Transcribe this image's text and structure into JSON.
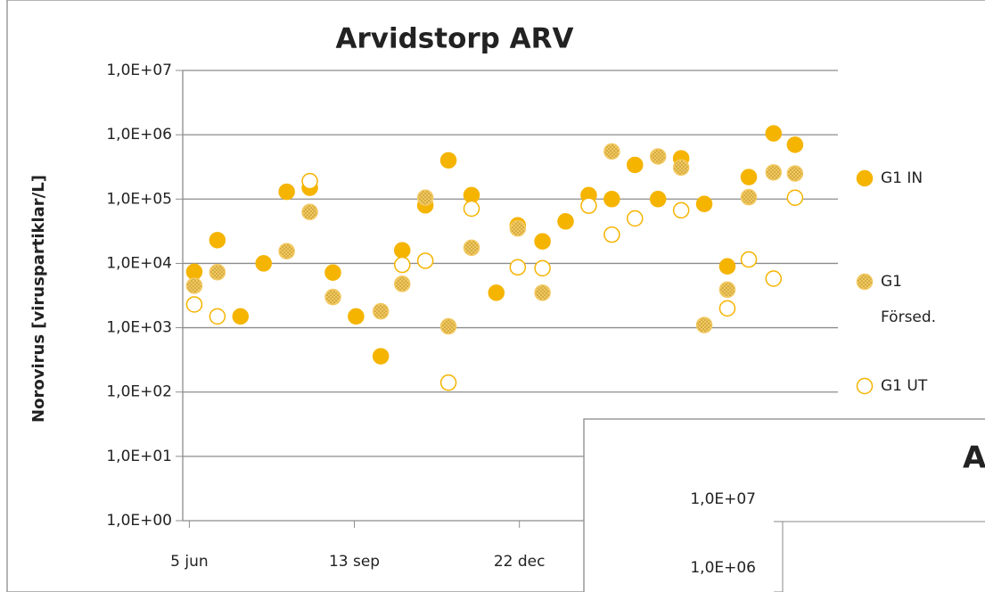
{
  "chart_data": {
    "type": "scatter",
    "title": "Arvidstorp ARV",
    "y_label": "Norovirus [viruspartiklar/L]",
    "log_y": true,
    "grid": true,
    "xlim": [
      -4,
      393
    ],
    "xticks": [
      {
        "value": 0,
        "label": "5 jun"
      },
      {
        "value": 100,
        "label": "13 sep"
      },
      {
        "value": 200,
        "label": "22 dec"
      }
    ],
    "ylim": [
      1,
      10000000
    ],
    "yticks": [
      {
        "value": 1,
        "label": "1,0E+00"
      },
      {
        "value": 10,
        "label": "1,0E+01"
      },
      {
        "value": 100,
        "label": "1,0E+02"
      },
      {
        "value": 1000,
        "label": "1,0E+03"
      },
      {
        "value": 10000,
        "label": "1,0E+04"
      },
      {
        "value": 100000,
        "label": "1,0E+05"
      },
      {
        "value": 1000000,
        "label": "1,0E+06"
      },
      {
        "value": 10000000,
        "label": "1,0E+07"
      }
    ],
    "series": [
      {
        "name": "G1 IN",
        "color": "#f5b400",
        "marker": "filled",
        "x": [
          3,
          17,
          31,
          45,
          59,
          73,
          87,
          101,
          116,
          129,
          143,
          157,
          171,
          186,
          199,
          214,
          228,
          242,
          256,
          270,
          284,
          298,
          312,
          326,
          339,
          354,
          367
        ],
        "values": [
          7400,
          23000,
          1500,
          10000,
          130000,
          150000,
          7200,
          1500,
          360,
          16000,
          80000,
          400000,
          115000,
          3500,
          39000,
          22000,
          45000,
          115000,
          100000,
          340000,
          100000,
          430000,
          84000,
          9000,
          220000,
          1050000,
          700000
        ]
      },
      {
        "name": "G1 Försed.",
        "color": "#f2c860",
        "marker": "dotted",
        "x": [
          3,
          17,
          59,
          73,
          87,
          116,
          129,
          143,
          157,
          171,
          199,
          214,
          256,
          284,
          298,
          312,
          326,
          339,
          354,
          367
        ],
        "values": [
          4500,
          7300,
          15500,
          63000,
          3000,
          1800,
          4800,
          105000,
          1050,
          17500,
          35000,
          3500,
          550000,
          460000,
          310000,
          1100,
          3900,
          107000,
          260000,
          250000
        ]
      },
      {
        "name": "G1 UT",
        "color": "#f5b400",
        "marker": "open",
        "x": [
          3,
          17,
          73,
          129,
          143,
          157,
          171,
          199,
          214,
          242,
          256,
          270,
          298,
          326,
          339,
          354,
          367
        ],
        "values": [
          2300,
          1500,
          190000,
          9500,
          11000,
          140,
          71000,
          8700,
          8400,
          79000,
          28000,
          50000,
          67000,
          2000,
          11500,
          5800,
          105000
        ]
      }
    ]
  },
  "overlay": {
    "title_fragment": "A",
    "tick_labels": [
      "1,0E+07",
      "1,0E+06"
    ]
  }
}
